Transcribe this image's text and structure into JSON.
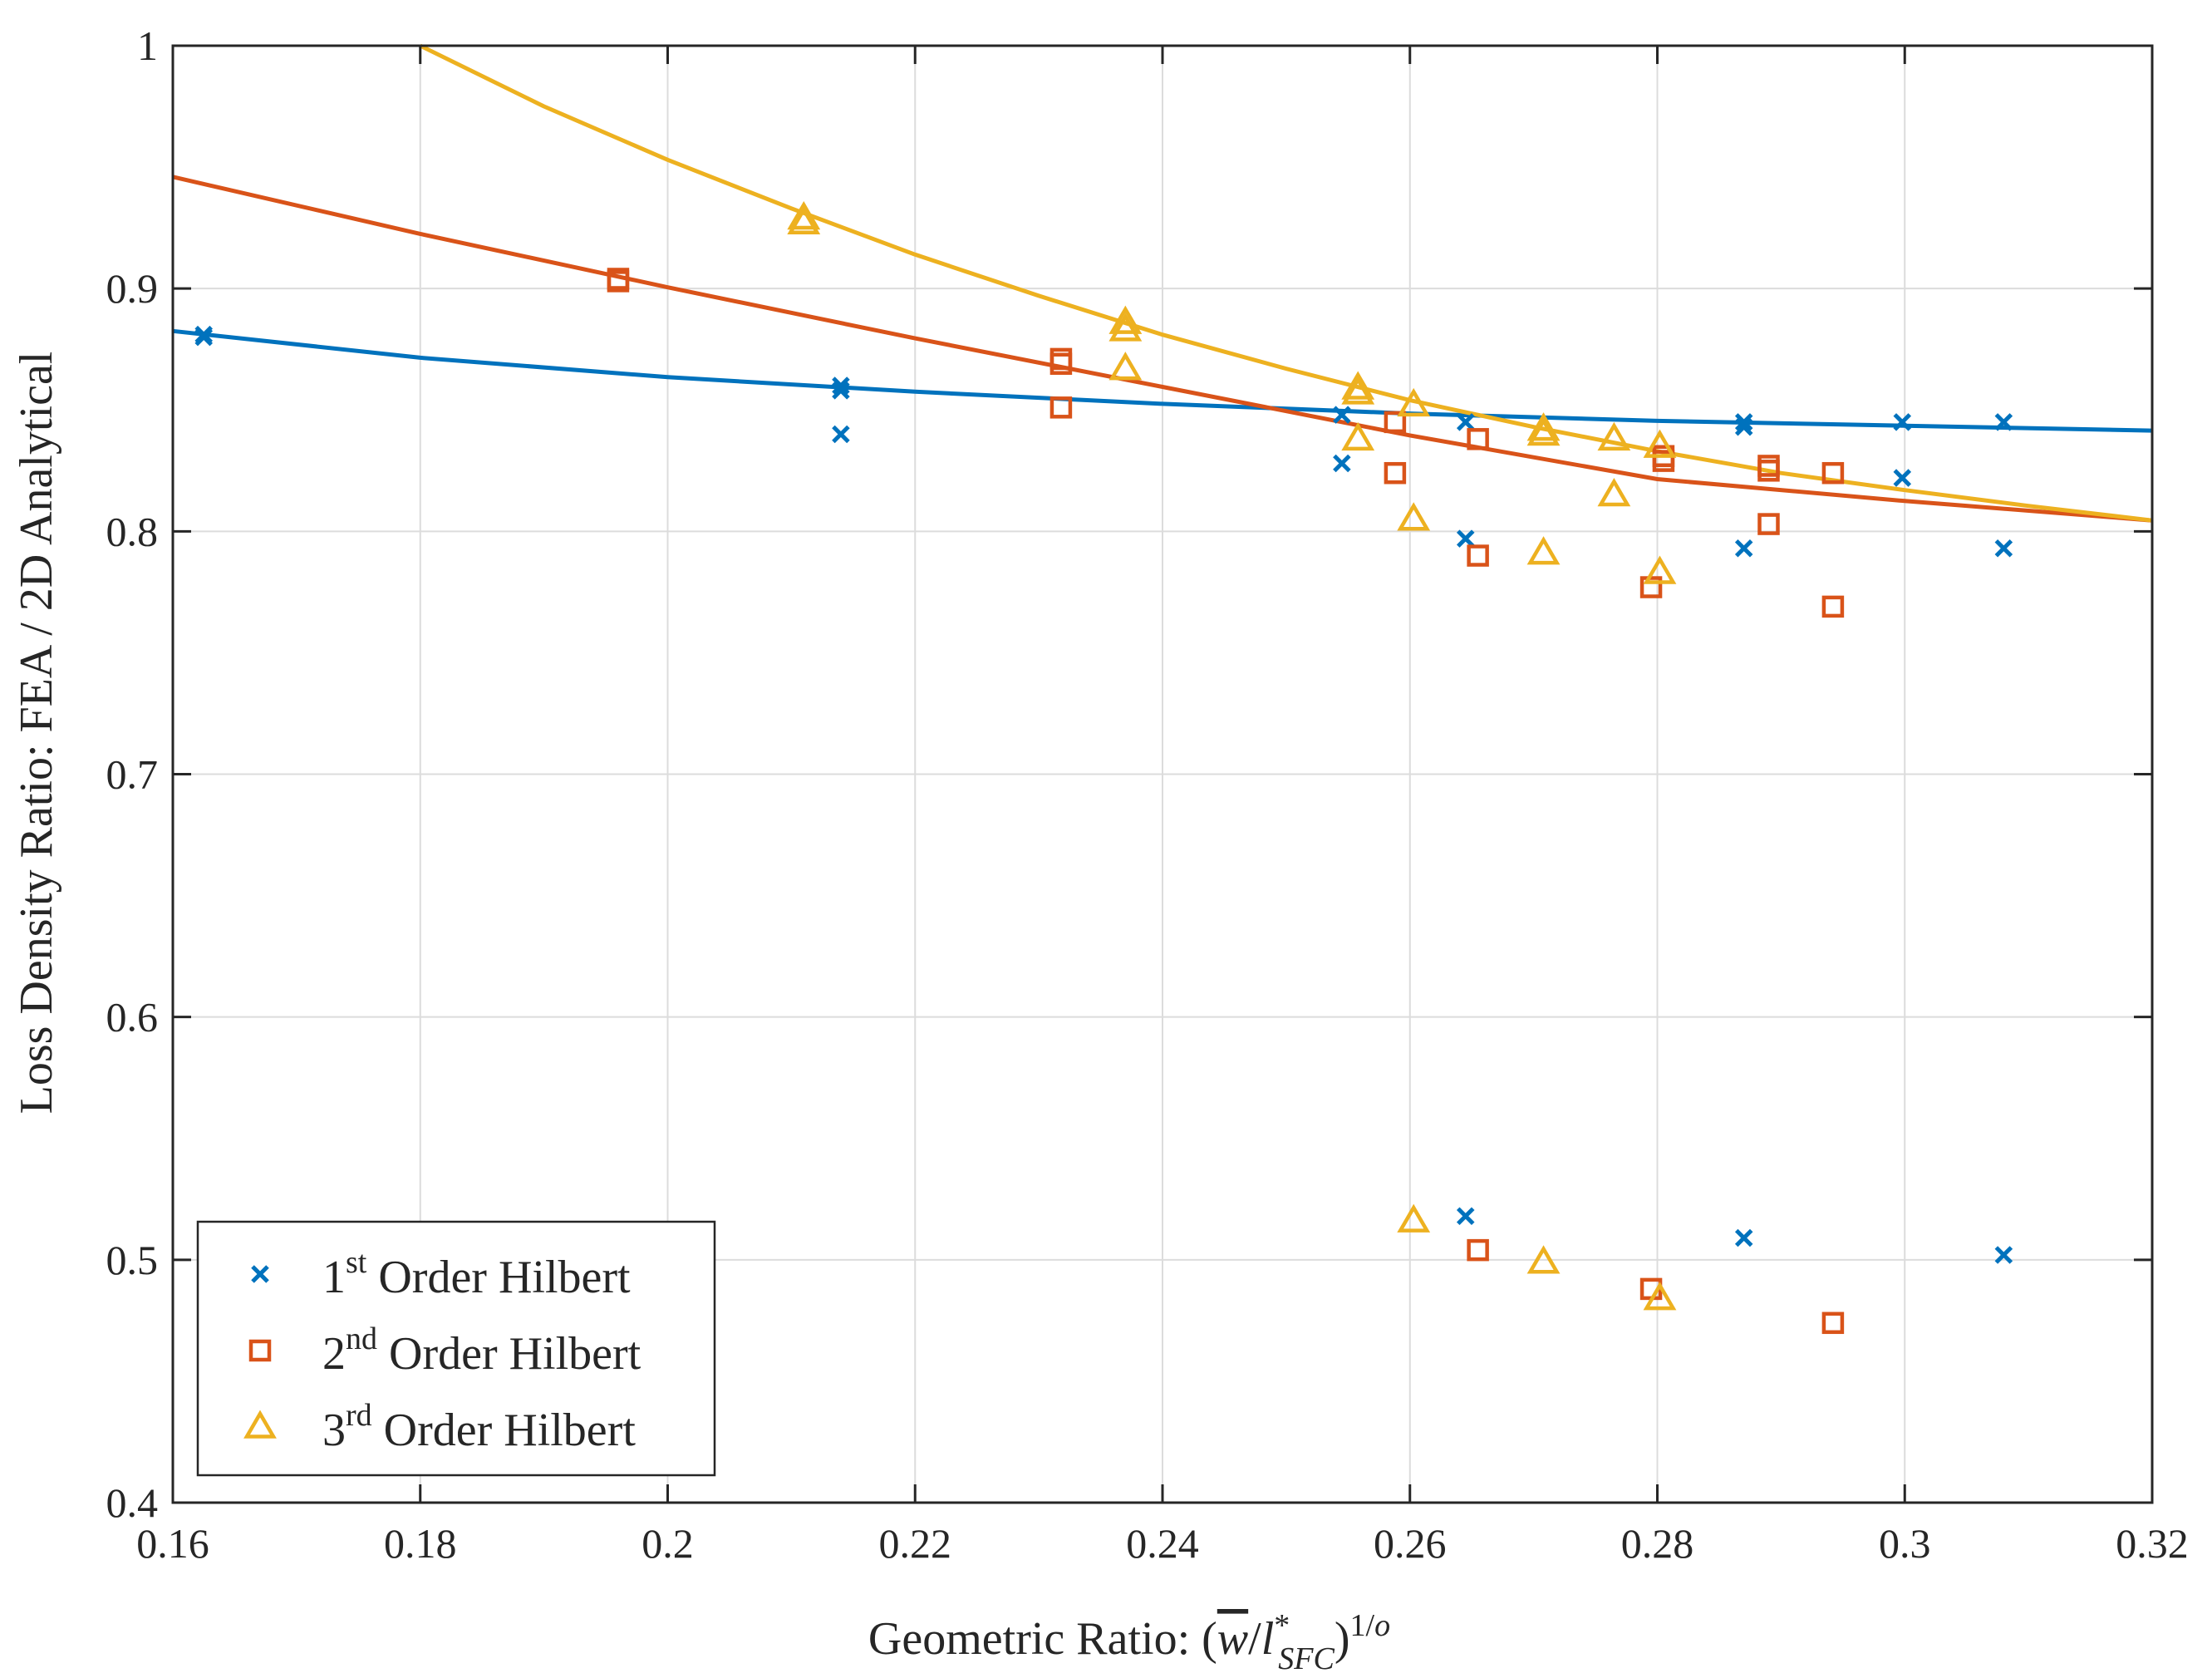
{
  "chart_data": {
    "type": "scatter",
    "title": "",
    "xlabel_prefix": "Geometric Ratio: ",
    "xlabel_math": "(w̄/l*SFC)1/o",
    "ylabel": "Loss Density Ratio: FEA / 2D Analytical",
    "xlim": [
      0.16,
      0.32
    ],
    "ylim": [
      0.4,
      1.0
    ],
    "grid": true,
    "x_ticks": [
      0.16,
      0.18,
      0.2,
      0.22,
      0.24,
      0.26,
      0.28,
      0.3,
      0.32
    ],
    "x_tick_labels": [
      "0.16",
      "0.18",
      "0.2",
      "0.22",
      "0.24",
      "0.26",
      "0.28",
      "0.3",
      "0.32"
    ],
    "y_ticks": [
      0.4,
      0.5,
      0.6,
      0.7,
      0.8,
      0.9,
      1.0
    ],
    "y_tick_labels": [
      "0.4",
      "0.5",
      "0.6",
      "0.7",
      "0.8",
      "0.9",
      "1"
    ],
    "legend_position": "bottom-left",
    "series": [
      {
        "name": "1st Order Hilbert",
        "legend_base": "1",
        "legend_sup": "st",
        "legend_rest": " Order Hilbert",
        "marker": "x",
        "color": "#0072BD",
        "points": [
          [
            0.1625,
            0.881
          ],
          [
            0.1625,
            0.88
          ],
          [
            0.214,
            0.86
          ],
          [
            0.214,
            0.858
          ],
          [
            0.214,
            0.84
          ],
          [
            0.2545,
            0.848
          ],
          [
            0.2545,
            0.828
          ],
          [
            0.2645,
            0.845
          ],
          [
            0.2645,
            0.797
          ],
          [
            0.2645,
            0.518
          ],
          [
            0.287,
            0.845
          ],
          [
            0.287,
            0.843
          ],
          [
            0.287,
            0.793
          ],
          [
            0.287,
            0.509
          ],
          [
            0.2998,
            0.845
          ],
          [
            0.2998,
            0.822
          ],
          [
            0.308,
            0.845
          ],
          [
            0.308,
            0.793
          ],
          [
            0.308,
            0.502
          ]
        ],
        "fit": [
          [
            0.16,
            0.8825
          ],
          [
            0.18,
            0.8715
          ],
          [
            0.2,
            0.8635
          ],
          [
            0.22,
            0.8575
          ],
          [
            0.24,
            0.8525
          ],
          [
            0.26,
            0.8485
          ],
          [
            0.28,
            0.8455
          ],
          [
            0.3,
            0.8435
          ],
          [
            0.32,
            0.8415
          ]
        ]
      },
      {
        "name": "2nd Order Hilbert",
        "legend_base": "2",
        "legend_sup": "nd",
        "legend_rest": " Order Hilbert",
        "marker": "square",
        "color": "#D95319",
        "points": [
          [
            0.196,
            0.904
          ],
          [
            0.196,
            0.903
          ],
          [
            0.2318,
            0.871
          ],
          [
            0.2318,
            0.869
          ],
          [
            0.2318,
            0.851
          ],
          [
            0.2588,
            0.845
          ],
          [
            0.2588,
            0.824
          ],
          [
            0.2655,
            0.838
          ],
          [
            0.2655,
            0.79
          ],
          [
            0.2655,
            0.504
          ],
          [
            0.2795,
            0.777
          ],
          [
            0.2795,
            0.488
          ],
          [
            0.2805,
            0.831
          ],
          [
            0.2805,
            0.829
          ],
          [
            0.289,
            0.827
          ],
          [
            0.289,
            0.825
          ],
          [
            0.289,
            0.803
          ],
          [
            0.2942,
            0.824
          ],
          [
            0.2942,
            0.769
          ],
          [
            0.2942,
            0.474
          ]
        ],
        "fit": [
          [
            0.16,
            0.946
          ],
          [
            0.18,
            0.9225
          ],
          [
            0.2,
            0.9005
          ],
          [
            0.22,
            0.8795
          ],
          [
            0.24,
            0.8595
          ],
          [
            0.26,
            0.8395
          ],
          [
            0.28,
            0.8215
          ],
          [
            0.3,
            0.8125
          ],
          [
            0.32,
            0.8045
          ]
        ]
      },
      {
        "name": "3rd Order Hilbert",
        "legend_base": "3",
        "legend_sup": "rd",
        "legend_rest": " Order Hilbert",
        "marker": "triangle",
        "color": "#EDB120",
        "points": [
          [
            0.211,
            0.929
          ],
          [
            0.211,
            0.927
          ],
          [
            0.237,
            0.886
          ],
          [
            0.237,
            0.883
          ],
          [
            0.237,
            0.867
          ],
          [
            0.2558,
            0.859
          ],
          [
            0.2558,
            0.857
          ],
          [
            0.2558,
            0.838
          ],
          [
            0.2603,
            0.852
          ],
          [
            0.2603,
            0.805
          ],
          [
            0.2603,
            0.516
          ],
          [
            0.2708,
            0.842
          ],
          [
            0.2708,
            0.84
          ],
          [
            0.2708,
            0.791
          ],
          [
            0.2708,
            0.499
          ],
          [
            0.2765,
            0.838
          ],
          [
            0.2765,
            0.815
          ],
          [
            0.2802,
            0.835
          ],
          [
            0.2802,
            0.783
          ],
          [
            0.2802,
            0.484
          ]
        ],
        "fit": [
          [
            0.18,
            1.0
          ],
          [
            0.19,
            0.975
          ],
          [
            0.2,
            0.953
          ],
          [
            0.21,
            0.933
          ],
          [
            0.22,
            0.914
          ],
          [
            0.23,
            0.897
          ],
          [
            0.24,
            0.881
          ],
          [
            0.25,
            0.867
          ],
          [
            0.26,
            0.854
          ],
          [
            0.27,
            0.843
          ],
          [
            0.28,
            0.833
          ],
          [
            0.29,
            0.824
          ],
          [
            0.3,
            0.817
          ],
          [
            0.31,
            0.8105
          ],
          [
            0.32,
            0.8045
          ]
        ]
      }
    ]
  }
}
